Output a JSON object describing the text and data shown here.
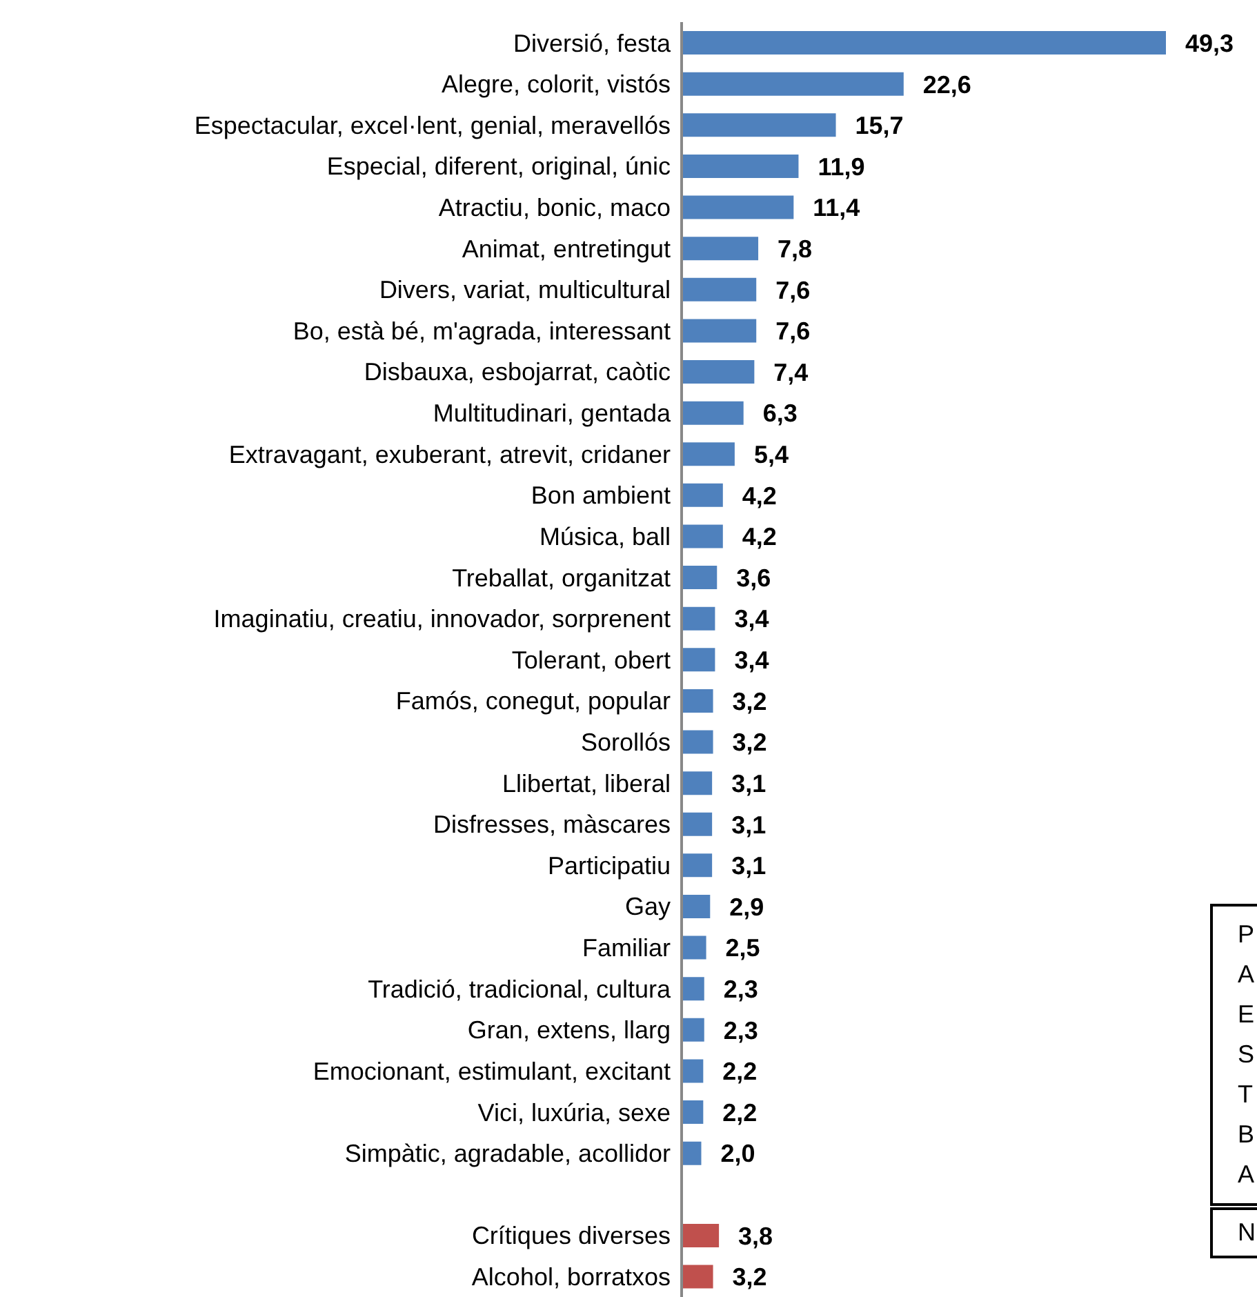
{
  "chart_data": {
    "type": "bar",
    "orientation": "horizontal",
    "categories": [
      "Diversió, festa",
      "Alegre, colorit, vistós",
      "Espectacular, excel·lent, genial, meravellós",
      "Especial, diferent, original, únic",
      "Atractiu, bonic, maco",
      "Animat, entretingut",
      "Divers, variat, multicultural",
      "Bo, està bé, m'agrada, interessant",
      "Disbauxa, esbojarrat, caòtic",
      "Multitudinari, gentada",
      "Extravagant, exuberant, atrevit, cridaner",
      "Bon ambient",
      "Música, ball",
      "Treballat, organitzat",
      "Imaginatiu, creatiu, innovador, sorprenent",
      "Tolerant, obert",
      "Famós, conegut, popular",
      "Sorollós",
      "Llibertat, liberal",
      "Disfresses, màscares",
      "Participatiu",
      "Gay",
      "Familiar",
      "Tradició, tradicional, cultura",
      "Gran, extens, llarg",
      "Emocionant, estimulant, excitant",
      "Vici, luxúria, sexe",
      "Simpàtic, agradable, acollidor",
      null,
      "Crítiques diverses",
      "Alcohol, borratxos"
    ],
    "values": [
      49.3,
      22.6,
      15.7,
      11.9,
      11.4,
      7.8,
      7.6,
      7.6,
      7.4,
      6.3,
      5.4,
      4.2,
      4.2,
      3.6,
      3.4,
      3.4,
      3.2,
      3.2,
      3.1,
      3.1,
      3.1,
      2.9,
      2.5,
      2.3,
      2.3,
      2.2,
      2.2,
      2.0,
      null,
      3.8,
      3.2
    ],
    "value_labels": [
      "49,3",
      "22,6",
      "15,7",
      "11,9",
      "11,4",
      "7,8",
      "7,6",
      "7,6",
      "7,4",
      "6,3",
      "5,4",
      "4,2",
      "4,2",
      "3,6",
      "3,4",
      "3,4",
      "3,2",
      "3,2",
      "3,1",
      "3,1",
      "3,1",
      "2,9",
      "2,5",
      "2,3",
      "2,3",
      "2,2",
      "2,2",
      "2,0",
      null,
      "3,8",
      "3,2"
    ],
    "colors": [
      "#4f81bd",
      "#4f81bd",
      "#4f81bd",
      "#4f81bd",
      "#4f81bd",
      "#4f81bd",
      "#4f81bd",
      "#4f81bd",
      "#4f81bd",
      "#4f81bd",
      "#4f81bd",
      "#4f81bd",
      "#4f81bd",
      "#4f81bd",
      "#4f81bd",
      "#4f81bd",
      "#4f81bd",
      "#4f81bd",
      "#4f81bd",
      "#4f81bd",
      "#4f81bd",
      "#4f81bd",
      "#4f81bd",
      "#4f81bd",
      "#4f81bd",
      "#4f81bd",
      "#4f81bd",
      "#4f81bd",
      "#4f81bd",
      "#c0504d",
      "#c0504d"
    ],
    "annotations": [
      "P",
      "A",
      "E",
      "S",
      "T",
      "B",
      "A",
      "N"
    ],
    "grid": false,
    "legend": false
  }
}
